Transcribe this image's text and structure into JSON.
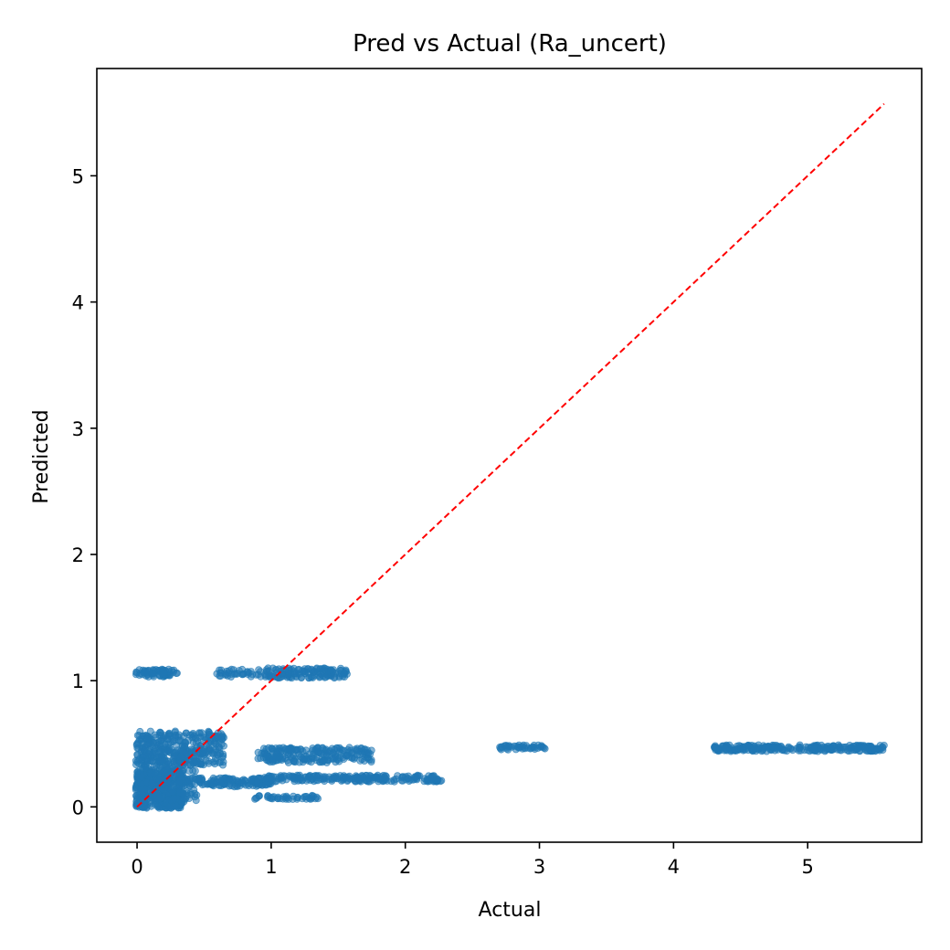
{
  "chart_data": {
    "type": "scatter",
    "title": "Pred vs Actual (Ra_uncert)",
    "xlabel": "Actual",
    "ylabel": "Predicted",
    "xlim": [
      -0.3,
      5.85
    ],
    "ylim": [
      -0.28,
      5.85
    ],
    "xticks": [
      0,
      1,
      2,
      3,
      4,
      5
    ],
    "yticks": [
      0,
      1,
      2,
      3,
      4,
      5
    ],
    "grid": false,
    "legend": "none",
    "colors": {
      "points": "#1f77b4",
      "reference_line": "#ff0000"
    },
    "reference_line": {
      "style": "dashed",
      "from": [
        0,
        0
      ],
      "to": [
        5.57,
        5.57
      ]
    },
    "point_clusters": [
      {
        "x_range": [
          -0.01,
          0.3
        ],
        "y_range": [
          1.03,
          1.09
        ],
        "count": 70
      },
      {
        "x_range": [
          0.58,
          0.93
        ],
        "y_range": [
          1.03,
          1.09
        ],
        "count": 40
      },
      {
        "x_range": [
          0.95,
          1.57
        ],
        "y_range": [
          1.02,
          1.1
        ],
        "count": 140
      },
      {
        "x_range": [
          -0.01,
          0.35
        ],
        "y_range": [
          -0.01,
          0.3
        ],
        "count": 450
      },
      {
        "x_range": [
          -0.01,
          0.65
        ],
        "y_range": [
          0.33,
          0.6
        ],
        "count": 320
      },
      {
        "x_range": [
          0.0,
          0.45
        ],
        "y_range": [
          0.05,
          0.45
        ],
        "count": 150
      },
      {
        "x_range": [
          0.3,
          1.0
        ],
        "y_range": [
          0.16,
          0.23
        ],
        "count": 150
      },
      {
        "x_range": [
          0.95,
          2.27
        ],
        "y_range": [
          0.2,
          0.25
        ],
        "count": 220
      },
      {
        "x_range": [
          0.9,
          1.75
        ],
        "y_range": [
          0.35,
          0.47
        ],
        "count": 220
      },
      {
        "x_range": [
          0.85,
          1.35
        ],
        "y_range": [
          0.06,
          0.09
        ],
        "count": 45
      },
      {
        "x_range": [
          2.7,
          3.05
        ],
        "y_range": [
          0.45,
          0.49
        ],
        "count": 45
      },
      {
        "x_range": [
          4.3,
          5.57
        ],
        "y_range": [
          0.44,
          0.49
        ],
        "count": 260
      }
    ]
  }
}
